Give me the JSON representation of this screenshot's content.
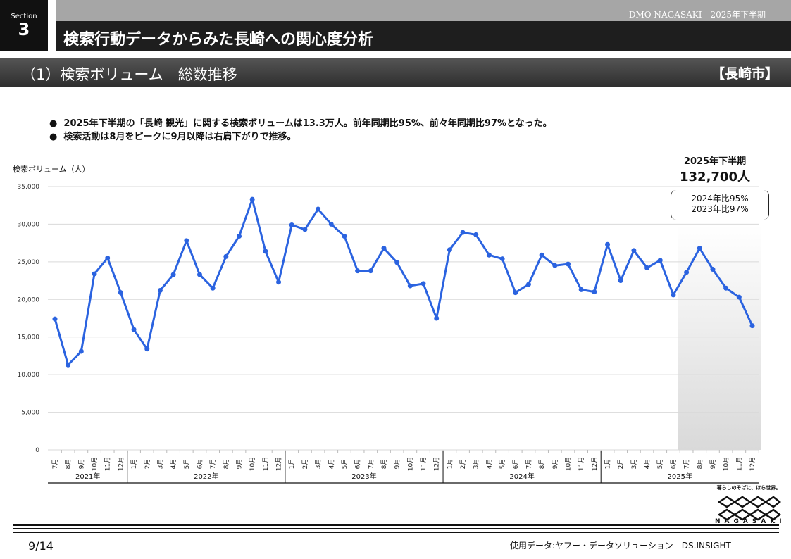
{
  "section": {
    "label": "Section",
    "number": "3"
  },
  "header": {
    "org": "DMO NAGASAKI　2025年下半期",
    "title": "検索行動データからみた長崎への関心度分析"
  },
  "subheader": {
    "title": "（1）検索ボリューム　総数推移",
    "region": "【長崎市】"
  },
  "bullets": [
    "2025年下半期の「長崎 観光」に関する検索ボリュームは13.3万人。前年同期比95%、前々年同期比97%となった。",
    "検索活動は8月をピークに9月以降は右肩下がりで推移。"
  ],
  "kpi": {
    "period": "2025年下半期",
    "value": "132,700人",
    "cmp1": "2024年比95%",
    "cmp2": "2023年比97%"
  },
  "chart_data": {
    "type": "line",
    "ylabel": "検索ボリューム（人）",
    "ylim": [
      0,
      35000
    ],
    "yticks": [
      "0",
      "5,000",
      "10,000",
      "15,000",
      "20,000",
      "25,000",
      "30,000",
      "35,000"
    ],
    "grid": true,
    "color": "#2b63e0",
    "highlight_color": "#d9d9d9",
    "years": [
      {
        "label": "2021年",
        "months": [
          "7月",
          "8月",
          "9月",
          "10月",
          "11月",
          "12月"
        ]
      },
      {
        "label": "2022年",
        "months": [
          "1月",
          "2月",
          "3月",
          "4月",
          "5月",
          "6月",
          "7月",
          "8月",
          "9月",
          "10月",
          "11月",
          "12月"
        ]
      },
      {
        "label": "2023年",
        "months": [
          "1月",
          "2月",
          "3月",
          "4月",
          "5月",
          "6月",
          "7月",
          "8月",
          "9月",
          "10月",
          "11月",
          "12月"
        ]
      },
      {
        "label": "2024年",
        "months": [
          "1月",
          "2月",
          "3月",
          "4月",
          "5月",
          "6月",
          "7月",
          "8月",
          "9月",
          "10月",
          "11月",
          "12月"
        ]
      },
      {
        "label": "2025年",
        "months": [
          "1月",
          "2月",
          "3月",
          "4月",
          "5月",
          "6月",
          "7月",
          "8月",
          "9月",
          "10月",
          "11月",
          "12月"
        ]
      }
    ],
    "values": [
      17400,
      11300,
      13100,
      23400,
      25500,
      20900,
      16000,
      13400,
      21200,
      23300,
      27800,
      23300,
      21500,
      25700,
      28400,
      33300,
      26400,
      22300,
      29900,
      29300,
      32000,
      30000,
      28400,
      23800,
      23800,
      26800,
      24900,
      21800,
      22100,
      17500,
      26600,
      28900,
      28600,
      25900,
      25400,
      20900,
      22000,
      25900,
      24500,
      24700,
      21300,
      21000,
      27300,
      22500,
      26500,
      24200,
      25200,
      20600,
      23600,
      26800,
      24000,
      21500,
      20300,
      16500
    ]
  },
  "footer": {
    "page": "9/14",
    "source": "使用データ:ヤフー・データソリューション　DS.INSIGHT",
    "logo_tagline": "暮らしのそばに、ほら世界。",
    "logo_name": "NAGASAKI"
  }
}
